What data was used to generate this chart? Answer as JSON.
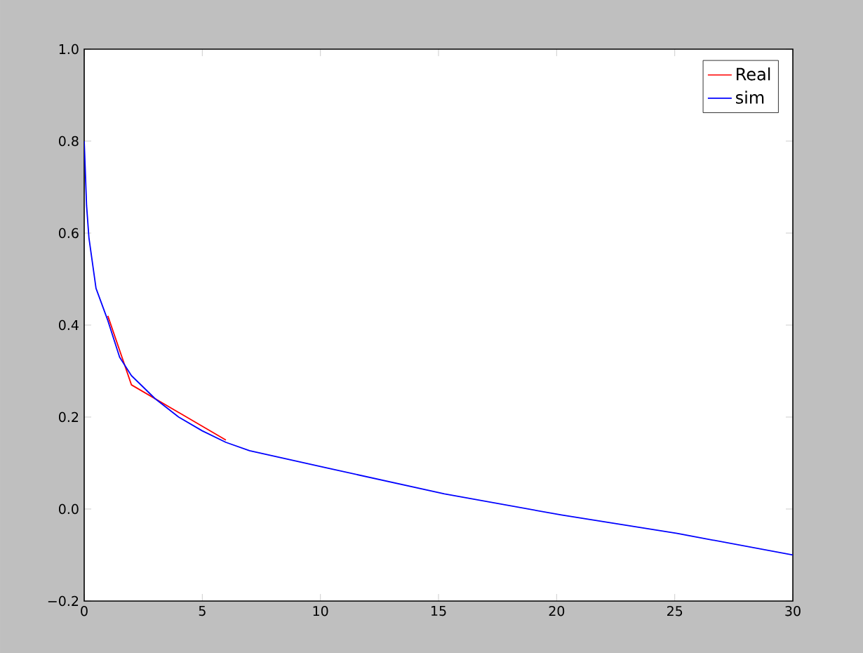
{
  "chart_data": {
    "type": "line",
    "xlim": [
      0,
      30
    ],
    "xticks": [
      0,
      5,
      10,
      15,
      20,
      25,
      30
    ],
    "ylim": [
      -0.2,
      1.0
    ],
    "yticks": [
      {
        "value": -0.2,
        "label": "−0.2"
      },
      {
        "value": 0.0,
        "label": "0.0"
      },
      {
        "value": 0.2,
        "label": "0.2"
      },
      {
        "value": 0.4,
        "label": "0.4"
      },
      {
        "value": 0.6,
        "label": "0.6"
      },
      {
        "value": 0.8,
        "label": "0.8"
      },
      {
        "value": 1.0,
        "label": "1.0"
      }
    ],
    "series": [
      {
        "name": "Real",
        "color": "#ff0000",
        "x": [
          1,
          2,
          6
        ],
        "values": [
          0.42,
          0.27,
          0.15
        ]
      },
      {
        "name": "sim",
        "color": "#0000ff",
        "x": [
          0,
          0.1,
          0.2,
          0.5,
          1,
          1.5,
          2,
          3,
          4,
          5,
          6,
          7,
          10.3,
          15.25,
          20.2,
          25.1,
          30
        ],
        "values": [
          0.8,
          0.66,
          0.59,
          0.48,
          0.41,
          0.33,
          0.29,
          0.24,
          0.2,
          0.17,
          0.145,
          0.127,
          0.089,
          0.033,
          -0.013,
          -0.053,
          -0.1
        ]
      }
    ],
    "legend": "top right",
    "grid": false,
    "marker": "none",
    "line_style": "solid"
  }
}
